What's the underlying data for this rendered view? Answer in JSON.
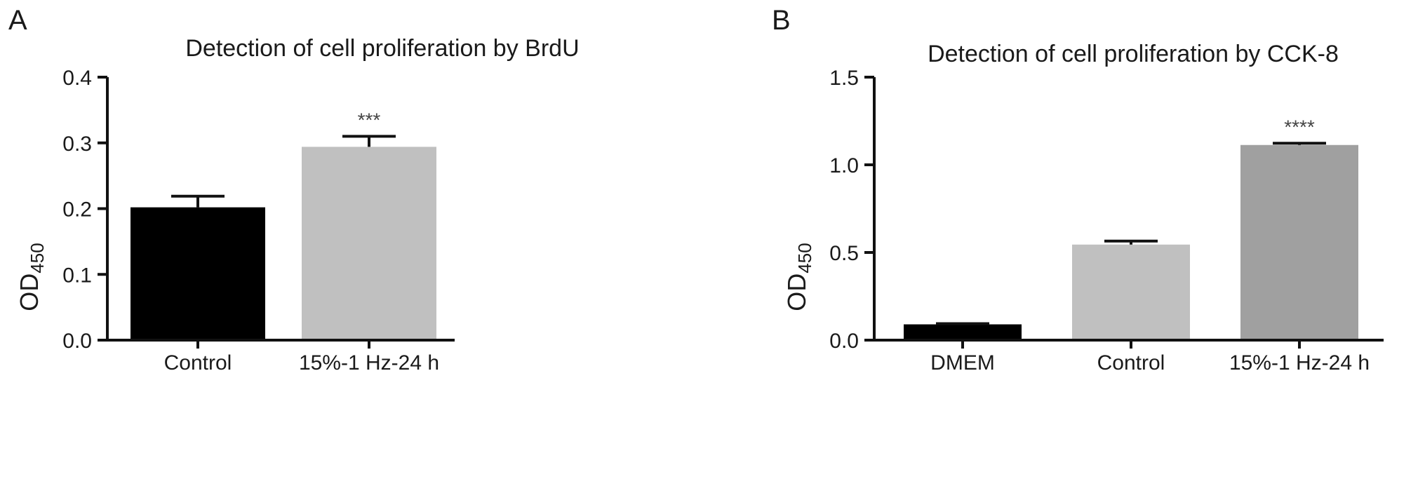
{
  "charts": [
    {
      "panel_label": "A",
      "chart_data": {
        "type": "bar",
        "title": "Detection of cell proliferation by BrdU",
        "ylabel": "OD",
        "ylabel_sub": "450",
        "ylim": [
          0,
          0.4
        ],
        "yticks": [
          0.0,
          0.1,
          0.2,
          0.3,
          0.4
        ],
        "ytick_labels": [
          "0.0",
          "0.1",
          "0.2",
          "0.3",
          "0.4"
        ],
        "categories": [
          "Control",
          "15%-1 Hz-24 h"
        ],
        "values": [
          0.202,
          0.294
        ],
        "errors": [
          0.017,
          0.016
        ],
        "colors": [
          "#000000",
          "#c0c0c0"
        ],
        "significance": [
          "",
          "***"
        ],
        "grid": false,
        "legend": "none"
      }
    },
    {
      "panel_label": "B",
      "chart_data": {
        "type": "bar",
        "title": "Detection of cell proliferation by CCK-8",
        "ylabel": "OD",
        "ylabel_sub": "450",
        "ylim": [
          0,
          1.5
        ],
        "yticks": [
          0.0,
          0.5,
          1.0,
          1.5
        ],
        "ytick_labels": [
          "0.0",
          "0.5",
          "1.0",
          "1.5"
        ],
        "categories": [
          "DMEM",
          "Control",
          "15%-1 Hz-24 h"
        ],
        "values": [
          0.09,
          0.545,
          1.113
        ],
        "errors": [
          0.004,
          0.02,
          0.01
        ],
        "colors": [
          "#000000",
          "#c0c0c0",
          "#a0a0a0"
        ],
        "significance": [
          "",
          "",
          "****"
        ],
        "grid": false,
        "legend": "none"
      }
    }
  ]
}
